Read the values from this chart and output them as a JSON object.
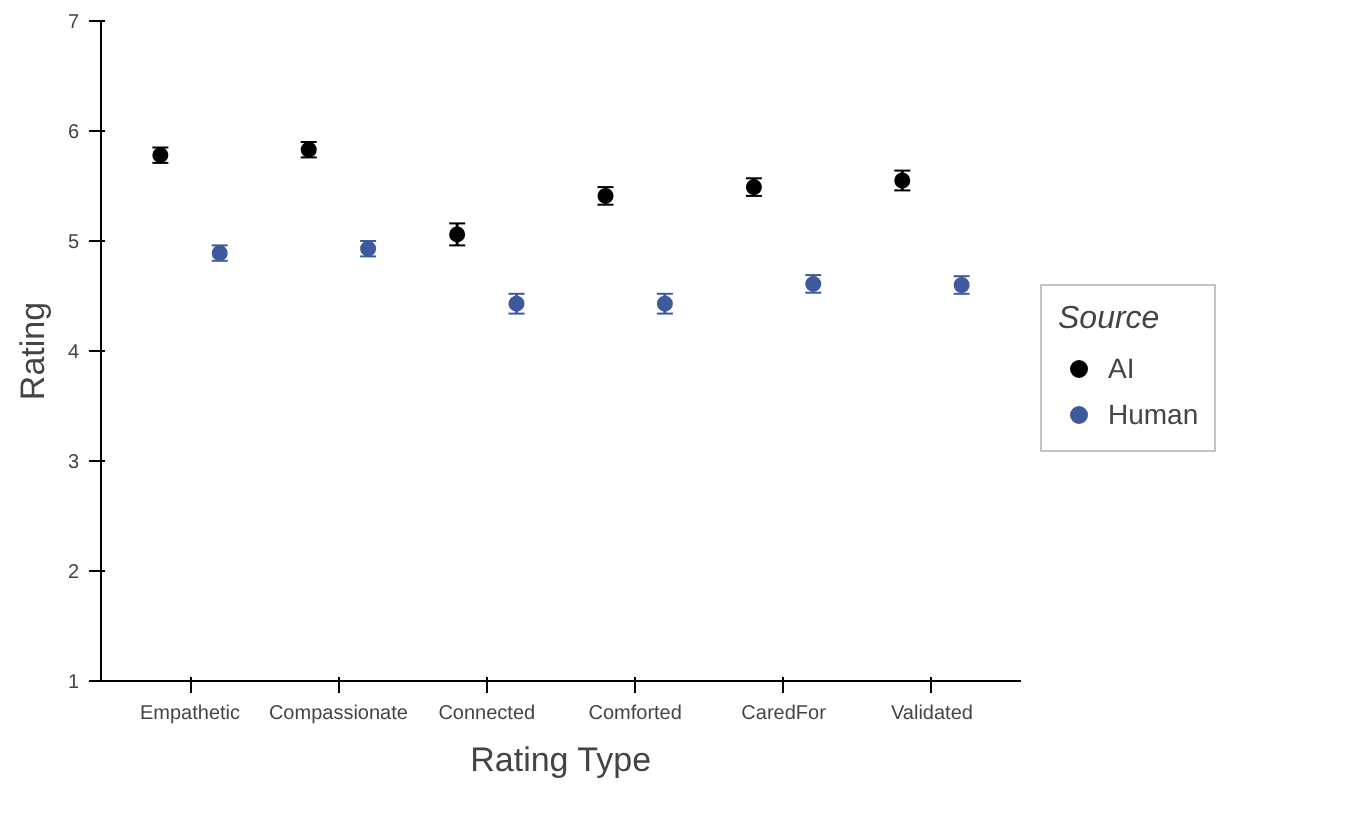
{
  "chart_data": {
    "type": "scatter",
    "xlabel": "Rating Type",
    "ylabel": "Rating",
    "legend_title": "Source",
    "legend": "right",
    "grid": false,
    "marker": "circle",
    "categories": [
      "Empathetic",
      "Compassionate",
      "Connected",
      "Comforted",
      "CaredFor",
      "Validated"
    ],
    "ylim": [
      1,
      7
    ],
    "yticks": [
      1,
      2,
      3,
      4,
      5,
      6,
      7
    ],
    "series": [
      {
        "name": "AI",
        "color": "#000000",
        "values": [
          5.78,
          5.83,
          5.06,
          5.41,
          5.49,
          5.55
        ],
        "errors": [
          0.07,
          0.07,
          0.1,
          0.08,
          0.08,
          0.09
        ]
      },
      {
        "name": "Human",
        "color": "#3e5a9c",
        "values": [
          4.89,
          4.93,
          4.43,
          4.43,
          4.61,
          4.6
        ],
        "errors": [
          0.07,
          0.07,
          0.09,
          0.09,
          0.08,
          0.08
        ]
      }
    ]
  }
}
